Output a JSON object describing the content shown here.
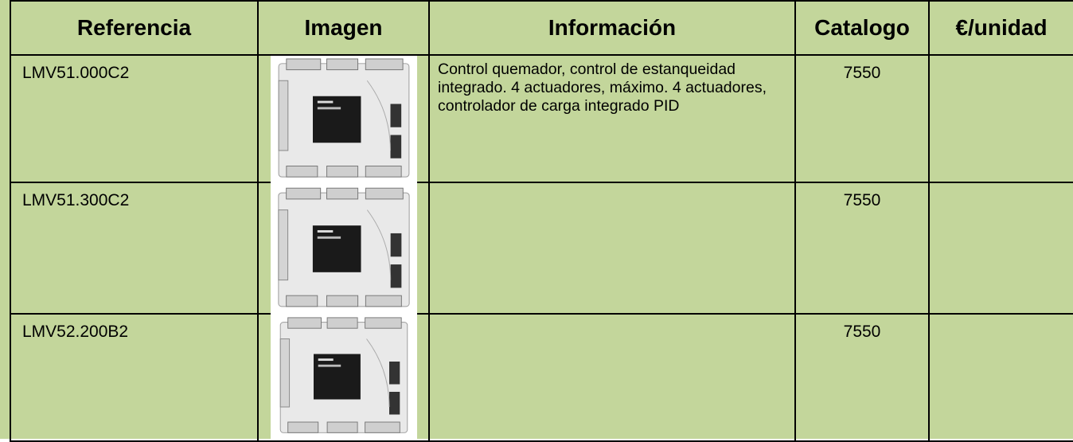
{
  "header": [
    "Referencia",
    "Imagen",
    "Información",
    "Catalogo",
    "€/unidad"
  ],
  "table": {
    "rows": [
      {
        "referencia": "LMV51.000C2",
        "informacion": "Control quemador, control de estanqueidad integrado. 4 actuadores, máximo. 4 actuadores, controlador de carga integrado PID",
        "catalogo": 7550
      },
      {
        "referencia": "LMV51.300C2",
        "catalogo": 7550
      },
      {
        "referencia": "LMV52.200B2",
        "catalogo": 7550
      }
    ]
  }
}
